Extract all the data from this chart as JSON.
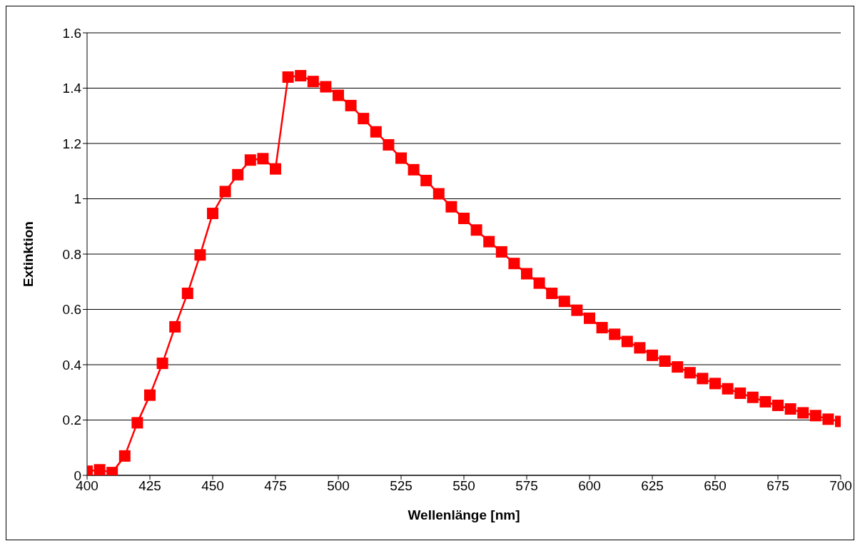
{
  "chart_data": {
    "type": "line",
    "xlabel": "Wellenlänge [nm]",
    "ylabel": "Extinktion",
    "x": [
      400,
      405,
      410,
      415,
      420,
      425,
      430,
      435,
      440,
      445,
      450,
      455,
      460,
      465,
      470,
      475,
      480,
      485,
      490,
      495,
      500,
      505,
      510,
      515,
      520,
      525,
      530,
      535,
      540,
      545,
      550,
      555,
      560,
      565,
      570,
      575,
      580,
      585,
      590,
      595,
      600,
      605,
      610,
      615,
      620,
      625,
      630,
      635,
      640,
      645,
      650,
      655,
      660,
      665,
      670,
      675,
      680,
      685,
      690,
      695,
      700
    ],
    "series": [
      {
        "color": "#ff0000",
        "values": [
          0.015,
          0.02,
          0.01,
          0.07,
          0.19,
          0.29,
          0.405,
          0.537,
          0.658,
          0.797,
          0.947,
          1.026,
          1.087,
          1.14,
          1.145,
          1.108,
          1.44,
          1.445,
          1.424,
          1.405,
          1.374,
          1.337,
          1.29,
          1.242,
          1.195,
          1.147,
          1.105,
          1.066,
          1.018,
          0.971,
          0.929,
          0.887,
          0.845,
          0.808,
          0.766,
          0.729,
          0.695,
          0.658,
          0.629,
          0.597,
          0.568,
          0.534,
          0.51,
          0.484,
          0.461,
          0.434,
          0.413,
          0.392,
          0.371,
          0.35,
          0.332,
          0.313,
          0.297,
          0.282,
          0.266,
          0.253,
          0.24,
          0.226,
          0.216,
          0.203,
          0.195
        ]
      }
    ],
    "xlim": [
      400,
      700
    ],
    "xticks": [
      400,
      425,
      450,
      475,
      500,
      525,
      550,
      575,
      600,
      625,
      650,
      675,
      700
    ],
    "ylim": [
      0,
      1.6
    ],
    "yticks": [
      0,
      0.2,
      0.4,
      0.6,
      0.8,
      1,
      1.2,
      1.4,
      1.6
    ],
    "grid": "y",
    "marker": "square",
    "line_style": "solid"
  }
}
